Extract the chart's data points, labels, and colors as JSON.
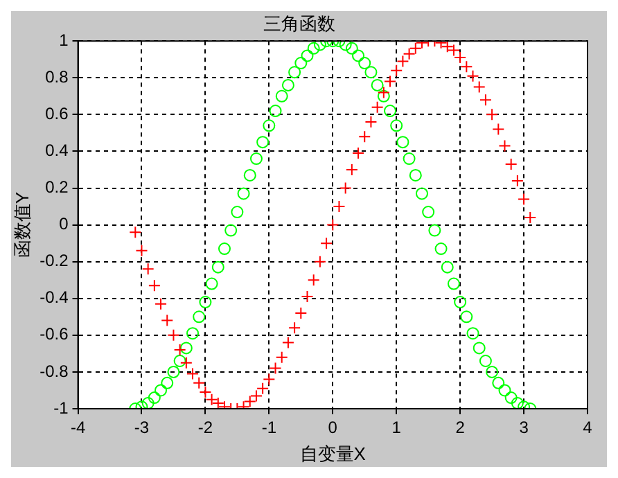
{
  "chart_data": {
    "type": "scatter",
    "title": "三角函数",
    "xlabel": "自变量X",
    "ylabel": "函数值Y",
    "x": [
      -3.1,
      -3.0,
      -2.9,
      -2.8,
      -2.7,
      -2.6,
      -2.5,
      -2.4,
      -2.3,
      -2.2,
      -2.1,
      -2.0,
      -1.9,
      -1.8,
      -1.7,
      -1.6,
      -1.5,
      -1.4,
      -1.3,
      -1.2,
      -1.1,
      -1.0,
      -0.9,
      -0.8,
      -0.7,
      -0.6,
      -0.5,
      -0.4,
      -0.3,
      -0.2,
      -0.1,
      0,
      0.1,
      0.2,
      0.3,
      0.4,
      0.5,
      0.6,
      0.7,
      0.8,
      0.9,
      1.0,
      1.1,
      1.2,
      1.3,
      1.4,
      1.5,
      1.6,
      1.7,
      1.8,
      1.9,
      2.0,
      2.1,
      2.2,
      2.3,
      2.4,
      2.5,
      2.6,
      2.7,
      2.8,
      2.9,
      3.0,
      3.1
    ],
    "series": [
      {
        "color": "#ff0000",
        "marker": "cross",
        "values": [
          -0.04,
          -0.14,
          -0.24,
          -0.33,
          -0.43,
          -0.52,
          -0.6,
          -0.68,
          -0.75,
          -0.81,
          -0.86,
          -0.91,
          -0.95,
          -0.97,
          -0.99,
          -1.0,
          -1.0,
          -0.99,
          -0.96,
          -0.93,
          -0.89,
          -0.84,
          -0.78,
          -0.72,
          -0.64,
          -0.56,
          -0.48,
          -0.39,
          -0.3,
          -0.2,
          -0.1,
          0,
          0.1,
          0.2,
          0.3,
          0.39,
          0.48,
          0.56,
          0.64,
          0.72,
          0.78,
          0.84,
          0.89,
          0.93,
          0.96,
          0.99,
          1.0,
          1.0,
          0.99,
          0.97,
          0.95,
          0.91,
          0.86,
          0.81,
          0.75,
          0.68,
          0.6,
          0.52,
          0.43,
          0.33,
          0.24,
          0.14,
          0.04
        ]
      },
      {
        "color": "#00ff00",
        "marker": "circle",
        "values": [
          -1.0,
          -0.99,
          -0.97,
          -0.94,
          -0.9,
          -0.86,
          -0.8,
          -0.74,
          -0.67,
          -0.59,
          -0.5,
          -0.42,
          -0.32,
          -0.23,
          -0.13,
          -0.03,
          0.07,
          0.17,
          0.27,
          0.36,
          0.45,
          0.54,
          0.62,
          0.7,
          0.76,
          0.83,
          0.88,
          0.92,
          0.96,
          0.98,
          1.0,
          1.0,
          1.0,
          0.98,
          0.96,
          0.92,
          0.88,
          0.83,
          0.76,
          0.7,
          0.62,
          0.54,
          0.45,
          0.36,
          0.27,
          0.17,
          0.07,
          -0.03,
          -0.13,
          -0.23,
          -0.32,
          -0.42,
          -0.5,
          -0.59,
          -0.67,
          -0.74,
          -0.8,
          -0.86,
          -0.9,
          -0.94,
          -0.97,
          -0.99,
          -1.0
        ]
      }
    ],
    "xlim": [
      -4,
      4
    ],
    "xticks": [
      -4,
      -3,
      -2,
      -1,
      0,
      1,
      2,
      3,
      4
    ],
    "ylim": [
      -1,
      1
    ],
    "yticks": [
      -1,
      -0.8,
      -0.6,
      -0.4,
      -0.2,
      0,
      0.2,
      0.4,
      0.6,
      0.8,
      1
    ],
    "grid": true
  }
}
